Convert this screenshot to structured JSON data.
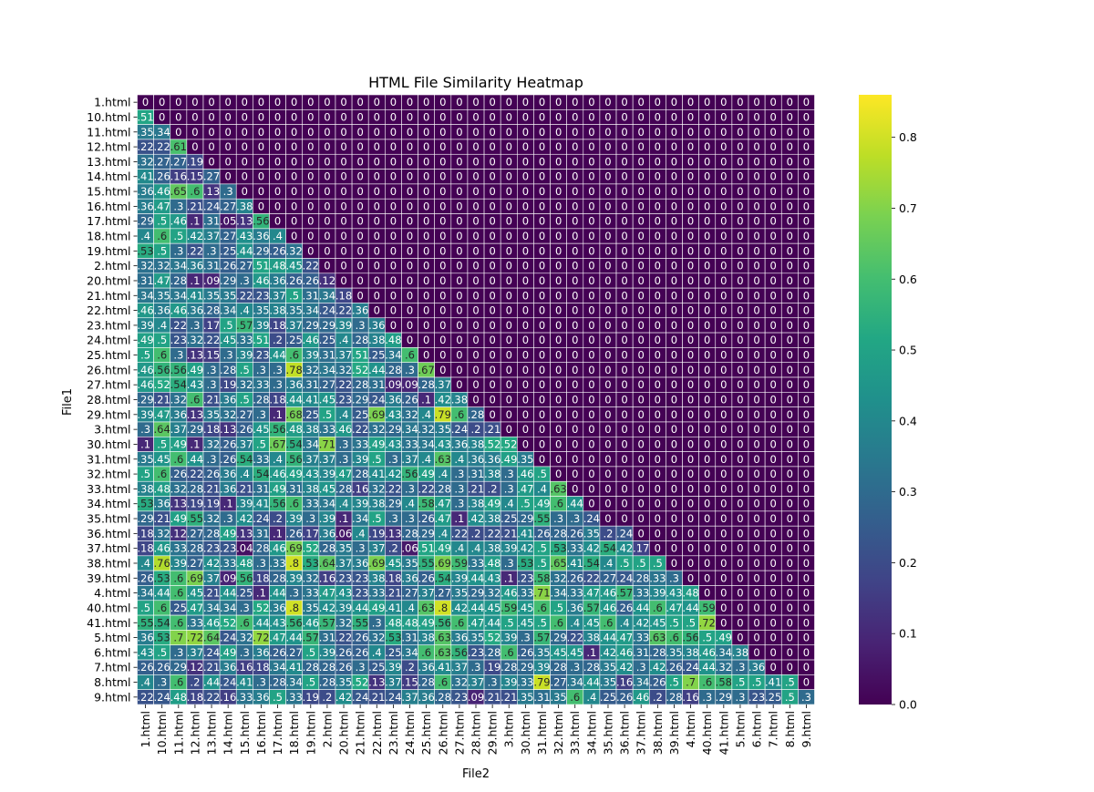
{
  "chart_data": {
    "type": "heatmap",
    "title": "HTML File Similarity Heatmap",
    "xlabel": "File2",
    "ylabel": "File1",
    "labels": [
      "1.html",
      "10.html",
      "11.html",
      "12.html",
      "13.html",
      "14.html",
      "15.html",
      "16.html",
      "17.html",
      "18.html",
      "19.html",
      "2.html",
      "20.html",
      "21.html",
      "22.html",
      "23.html",
      "24.html",
      "25.html",
      "26.html",
      "27.html",
      "28.html",
      "29.html",
      "3.html",
      "30.html",
      "31.html",
      "32.html",
      "33.html",
      "34.html",
      "35.html",
      "36.html",
      "37.html",
      "38.html",
      "39.html",
      "4.html",
      "40.html",
      "41.html",
      "5.html",
      "6.html",
      "7.html",
      "8.html",
      "9.html"
    ],
    "colormap": "viridis",
    "vmin": 0.0,
    "vmax": 0.86,
    "colorbar_ticks": [
      "0.0",
      "0.1",
      "0.2",
      "0.3",
      "0.4",
      "0.5",
      "0.6",
      "0.7",
      "0.8"
    ],
    "grid": true,
    "annotations": true,
    "matrix": [
      [
        0
      ],
      [
        0.51,
        0
      ],
      [
        0.35,
        0.34,
        0
      ],
      [
        0.22,
        0.22,
        0.61,
        0
      ],
      [
        0.32,
        0.27,
        0.27,
        0.19,
        0
      ],
      [
        0.41,
        0.26,
        0.16,
        0.15,
        0.27,
        0
      ],
      [
        0.36,
        0.46,
        0.65,
        0.6,
        0.13,
        0.3,
        0
      ],
      [
        0.36,
        0.47,
        0.3,
        0.21,
        0.24,
        0.27,
        0.38,
        0
      ],
      [
        0.29,
        0.5,
        0.46,
        0.1,
        0.31,
        0.05,
        0.13,
        0.56,
        0
      ],
      [
        0.4,
        0.6,
        0.5,
        0.42,
        0.37,
        0.27,
        0.43,
        0.36,
        0.4,
        0
      ],
      [
        0.53,
        0.5,
        0.3,
        0.22,
        0.3,
        0.25,
        0.44,
        0.29,
        0.26,
        0.32,
        0
      ],
      [
        0.32,
        0.32,
        0.34,
        0.36,
        0.31,
        0.26,
        0.27,
        0.51,
        0.48,
        0.45,
        0.22,
        0
      ],
      [
        0.31,
        0.47,
        0.28,
        0.1,
        0.09,
        0.29,
        0.3,
        0.46,
        0.36,
        0.26,
        0.26,
        0.12,
        0
      ],
      [
        0.34,
        0.35,
        0.34,
        0.41,
        0.35,
        0.35,
        0.22,
        0.23,
        0.37,
        0.5,
        0.31,
        0.34,
        0.18,
        0
      ],
      [
        0.46,
        0.36,
        0.46,
        0.36,
        0.28,
        0.34,
        0.4,
        0.35,
        0.38,
        0.35,
        0.34,
        0.24,
        0.22,
        0.36,
        0
      ],
      [
        0.39,
        0.4,
        0.22,
        0.3,
        0.17,
        0.5,
        0.57,
        0.39,
        0.18,
        0.37,
        0.29,
        0.29,
        0.39,
        0.3,
        0.36,
        0
      ],
      [
        0.49,
        0.5,
        0.23,
        0.32,
        0.22,
        0.45,
        0.33,
        0.51,
        0.2,
        0.25,
        0.46,
        0.25,
        0.4,
        0.28,
        0.38,
        0.48,
        0
      ],
      [
        0.5,
        0.6,
        0.3,
        0.13,
        0.15,
        0.3,
        0.39,
        0.23,
        0.44,
        0.6,
        0.39,
        0.31,
        0.37,
        0.51,
        0.25,
        0.34,
        0.6,
        0
      ],
      [
        0.46,
        0.56,
        0.56,
        0.49,
        0.3,
        0.28,
        0.5,
        0.3,
        0.3,
        0.78,
        0.32,
        0.34,
        0.32,
        0.52,
        0.44,
        0.28,
        0.3,
        0.67,
        0
      ],
      [
        0.46,
        0.52,
        0.54,
        0.43,
        0.3,
        0.19,
        0.32,
        0.33,
        0.3,
        0.36,
        0.31,
        0.27,
        0.22,
        0.28,
        0.31,
        0.09,
        0.09,
        0.28,
        0.37,
        0
      ],
      [
        0.29,
        0.21,
        0.32,
        0.6,
        0.21,
        0.36,
        0.5,
        0.28,
        0.18,
        0.44,
        0.41,
        0.45,
        0.23,
        0.29,
        0.24,
        0.36,
        0.26,
        0.1,
        0.42,
        0.38,
        0
      ],
      [
        0.39,
        0.47,
        0.36,
        0.13,
        0.35,
        0.32,
        0.27,
        0.3,
        0.1,
        0.68,
        0.25,
        0.5,
        0.4,
        0.25,
        0.69,
        0.43,
        0.32,
        0.4,
        0.79,
        0.6,
        0.28,
        0
      ],
      [
        0.3,
        0.64,
        0.37,
        0.29,
        0.18,
        0.13,
        0.26,
        0.45,
        0.56,
        0.48,
        0.38,
        0.33,
        0.46,
        0.22,
        0.32,
        0.29,
        0.34,
        0.32,
        0.35,
        0.24,
        0.2,
        0.21,
        0
      ],
      [
        0.1,
        0.5,
        0.49,
        0.1,
        0.32,
        0.26,
        0.37,
        0.5,
        0.67,
        0.54,
        0.34,
        0.71,
        0.3,
        0.33,
        0.49,
        0.43,
        0.33,
        0.34,
        0.43,
        0.36,
        0.38,
        0.52,
        0.52,
        0
      ],
      [
        0.35,
        0.45,
        0.6,
        0.44,
        0.3,
        0.26,
        0.54,
        0.33,
        0.4,
        0.56,
        0.37,
        0.37,
        0.3,
        0.39,
        0.5,
        0.3,
        0.37,
        0.4,
        0.63,
        0.4,
        0.36,
        0.36,
        0.49,
        0.35,
        0
      ],
      [
        0.5,
        0.6,
        0.26,
        0.22,
        0.26,
        0.36,
        0.4,
        0.54,
        0.46,
        0.49,
        0.43,
        0.39,
        0.47,
        0.28,
        0.41,
        0.42,
        0.56,
        0.49,
        0.4,
        0.3,
        0.31,
        0.38,
        0.3,
        0.46,
        0.5,
        0
      ],
      [
        0.38,
        0.48,
        0.32,
        0.28,
        0.21,
        0.36,
        0.21,
        0.31,
        0.49,
        0.31,
        0.38,
        0.45,
        0.28,
        0.16,
        0.32,
        0.22,
        0.3,
        0.22,
        0.28,
        0.3,
        0.21,
        0.2,
        0.3,
        0.47,
        0.4,
        0.63,
        0
      ],
      [
        0.53,
        0.36,
        0.13,
        0.19,
        0.19,
        0.1,
        0.39,
        0.41,
        0.56,
        0.6,
        0.33,
        0.34,
        0.4,
        0.39,
        0.38,
        0.29,
        0.4,
        0.58,
        0.47,
        0.3,
        0.38,
        0.49,
        0.4,
        0.5,
        0.49,
        0.6,
        0.44,
        0
      ],
      [
        0.29,
        0.21,
        0.49,
        0.55,
        0.32,
        0.3,
        0.42,
        0.24,
        0.2,
        0.39,
        0.3,
        0.39,
        0.1,
        0.34,
        0.5,
        0.3,
        0.3,
        0.26,
        0.47,
        0.1,
        0.42,
        0.38,
        0.25,
        0.29,
        0.55,
        0.3,
        0.3,
        0.24,
        0
      ],
      [
        0.18,
        0.32,
        0.12,
        0.27,
        0.28,
        0.49,
        0.13,
        0.31,
        0.1,
        0.26,
        0.17,
        0.36,
        0.06,
        0.4,
        0.19,
        0.13,
        0.28,
        0.29,
        0.4,
        0.22,
        0.2,
        0.22,
        0.21,
        0.41,
        0.26,
        0.28,
        0.26,
        0.35,
        0.2,
        0.24
      ],
      [
        0.18,
        0.46,
        0.33,
        0.28,
        0.23,
        0.23,
        0.04,
        0.28,
        0.46,
        0.69,
        0.52,
        0.28,
        0.35,
        0.3,
        0.37,
        0.2,
        0.06,
        0.51,
        0.49,
        0.4,
        0.4,
        0.38,
        0.39,
        0.42,
        0.5,
        0.53,
        0.33,
        0.42,
        0.54,
        0.42,
        0.17
      ],
      [
        0.4,
        0.76,
        0.39,
        0.27,
        0.42,
        0.33,
        0.48,
        0.3,
        0.33,
        0.8,
        0.53,
        0.64,
        0.37,
        0.36,
        0.69,
        0.45,
        0.35,
        0.55,
        0.69,
        0.59,
        0.33,
        0.48,
        0.3,
        0.53,
        0.5,
        0.65,
        0.41,
        0.54,
        0.4,
        0.5,
        0.5,
        0.5
      ],
      [
        0.26,
        0.53,
        0.6,
        0.69,
        0.37,
        0.09,
        0.56,
        0.18,
        0.28,
        0.39,
        0.32,
        0.16,
        0.23,
        0.23,
        0.38,
        0.18,
        0.36,
        0.26,
        0.54,
        0.39,
        0.44,
        0.43,
        0.1,
        0.23,
        0.58,
        0.32,
        0.26,
        0.22,
        0.27,
        0.24,
        0.28,
        0.33,
        0.3
      ],
      [
        0.34,
        0.44,
        0.6,
        0.45,
        0.21,
        0.44,
        0.25,
        0.1,
        0.44,
        0.3,
        0.33,
        0.47,
        0.43,
        0.23,
        0.33,
        0.21,
        0.27,
        0.37,
        0.27,
        0.35,
        0.29,
        0.32,
        0.46,
        0.33,
        0.71,
        0.34,
        0.33,
        0.47,
        0.46,
        0.57,
        0.33,
        0.39,
        0.43,
        0.48
      ],
      [
        0.5,
        0.6,
        0.25,
        0.47,
        0.34,
        0.34,
        0.3,
        0.52,
        0.36,
        0.8,
        0.35,
        0.42,
        0.39,
        0.44,
        0.49,
        0.41,
        0.4,
        0.63,
        0.8,
        0.42,
        0.44,
        0.45,
        0.59,
        0.45,
        0.6,
        0.5,
        0.36,
        0.57,
        0.46,
        0.26,
        0.44,
        0.6,
        0.47,
        0.44,
        0.59
      ],
      [
        0.55,
        0.54,
        0.6,
        0.33,
        0.46,
        0.52,
        0.6,
        0.44,
        0.43,
        0.56,
        0.46,
        0.57,
        0.32,
        0.55,
        0.3,
        0.48,
        0.48,
        0.49,
        0.56,
        0.6,
        0.47,
        0.44,
        0.5,
        0.45,
        0.5,
        0.6,
        0.4,
        0.45,
        0.6,
        0.4,
        0.42,
        0.45,
        0.5,
        0.5,
        0.72,
        0
      ],
      [
        0.36,
        0.53,
        0.7,
        0.72,
        0.64,
        0.24,
        0.32,
        0.72,
        0.47,
        0.44,
        0.57,
        0.31,
        0.22,
        0.26,
        0.32,
        0.53,
        0.31,
        0.38,
        0.63,
        0.36,
        0.35,
        0.52,
        0.39,
        0.3,
        0.57,
        0.29,
        0.22,
        0.38,
        0.44,
        0.47,
        0.33,
        0.63,
        0.6,
        0.56,
        0.5,
        0.49,
        0
      ],
      [
        0.43,
        0.5,
        0.3,
        0.37,
        0.24,
        0.49,
        0.3,
        0.36,
        0.26,
        0.27,
        0.5,
        0.39,
        0.26,
        0.26,
        0.4,
        0.25,
        0.34,
        0.6,
        0.63,
        0.56,
        0.23,
        0.28,
        0.6,
        0.26,
        0.35,
        0.45,
        0.45,
        0.1,
        0.42,
        0.46,
        0.31,
        0.28,
        0.35,
        0.38,
        0.46,
        0.34,
        0.38
      ],
      [
        0.26,
        0.26,
        0.29,
        0.12,
        0.21,
        0.36,
        0.16,
        0.18,
        0.34,
        0.41,
        0.28,
        0.28,
        0.26,
        0.3,
        0.25,
        0.39,
        0.2,
        0.36,
        0.41,
        0.37,
        0.3,
        0.19,
        0.28,
        0.29,
        0.39,
        0.28,
        0.3,
        0.28,
        0.35,
        0.42,
        0.3,
        0.42,
        0.26,
        0.24,
        0.44,
        0.32,
        0.3,
        0.36
      ],
      [
        0.4,
        0.3,
        0.6,
        0.2,
        0.44,
        0.24,
        0.41,
        0.3,
        0.28,
        0.34,
        0.5,
        0.28,
        0.35,
        0.52,
        0.13,
        0.37,
        0.15,
        0.28,
        0.6,
        0.32,
        0.37,
        0.3,
        0.39,
        0.33,
        0.79,
        0.27,
        0.34,
        0.44,
        0.35,
        0.16,
        0.34,
        0.26,
        0.5,
        0.7,
        0.6,
        0.58,
        0.5,
        0.5,
        0.41,
        0.5
      ],
      [
        0.22,
        0.24,
        0.48,
        0.18,
        0.22,
        0.16,
        0.33,
        0.36,
        0.5,
        0.33,
        0.19,
        0.2,
        0.42,
        0.24,
        0.21,
        0.24,
        0.37,
        0.36,
        0.28,
        0.23,
        0.09,
        0.21,
        0.21,
        0.35,
        0.31,
        0.35,
        0.6,
        0.4,
        0.25,
        0.26,
        0.46,
        0.2,
        0.28,
        0.16,
        0.3,
        0.29,
        0.3,
        0.23,
        0.25,
        0.5,
        0.3
      ]
    ]
  }
}
